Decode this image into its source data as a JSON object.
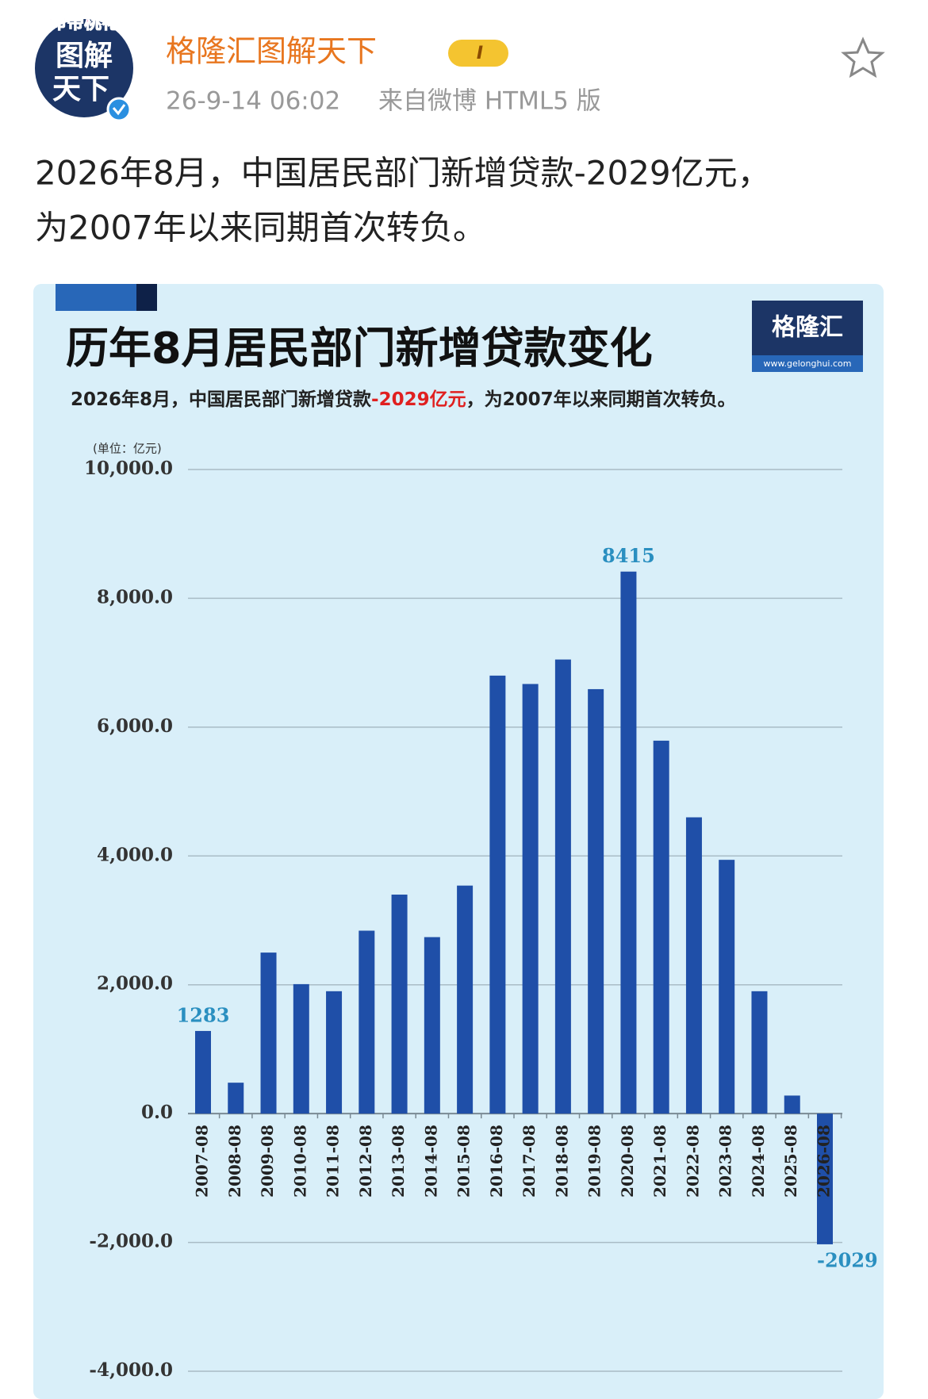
{
  "post": {
    "avatar_badge": "命带桃花",
    "avatar_text": [
      "图解",
      "天下"
    ],
    "user_name": "格隆汇图解天下",
    "level": "I",
    "time": "26-9-14 06:02",
    "source": "来自微博 HTML5 版",
    "text": [
      "2026年8月，中国居民部门新增贷款-2029亿元，",
      "为2007年以来同期首次转负。"
    ]
  },
  "logo": {
    "name": "格隆汇",
    "url": "www.gelonghui.com"
  },
  "chart_data": {
    "type": "bar",
    "title": "历年8月居民部门新增贷款变化",
    "subtitle": [
      "2026年8月，中国居民部门新增贷款",
      "-2029亿元",
      "，为2007年以来同期首次转负。"
    ],
    "unit": "(单位：亿元)",
    "categories": [
      "2007-08",
      "2008-08",
      "2009-08",
      "2010-08",
      "2011-08",
      "2012-08",
      "2013-08",
      "2014-08",
      "2015-08",
      "2016-08",
      "2017-08",
      "2018-08",
      "2019-08",
      "2020-08",
      "2021-08",
      "2022-08",
      "2023-08",
      "2024-08",
      "2025-08",
      "2026-08"
    ],
    "values": [
      1283,
      480,
      2500,
      2010,
      1900,
      2840,
      3400,
      2740,
      3540,
      6800,
      6670,
      7050,
      6590,
      8415,
      5790,
      4600,
      3940,
      1900,
      280,
      -2029
    ],
    "value_labels": [
      "1283",
      null,
      null,
      null,
      null,
      null,
      null,
      null,
      null,
      null,
      null,
      null,
      null,
      "8415",
      null,
      null,
      null,
      null,
      null,
      "-2029"
    ],
    "color": "#1f4fa8",
    "ylim": [
      -4000,
      10000
    ],
    "yticks": [
      {
        "value": -4000,
        "label": "-4,000.0"
      },
      {
        "value": -2000,
        "label": "-2,000.0"
      },
      {
        "value": 0,
        "label": "0.0"
      },
      {
        "value": 2000,
        "label": "2,000.0"
      },
      {
        "value": 4000,
        "label": "4,000.0"
      },
      {
        "value": 6000,
        "label": "6,000.0"
      },
      {
        "value": 8000,
        "label": "8,000.0"
      },
      {
        "value": 10000,
        "label": "10,000.0"
      }
    ],
    "grid": true
  }
}
